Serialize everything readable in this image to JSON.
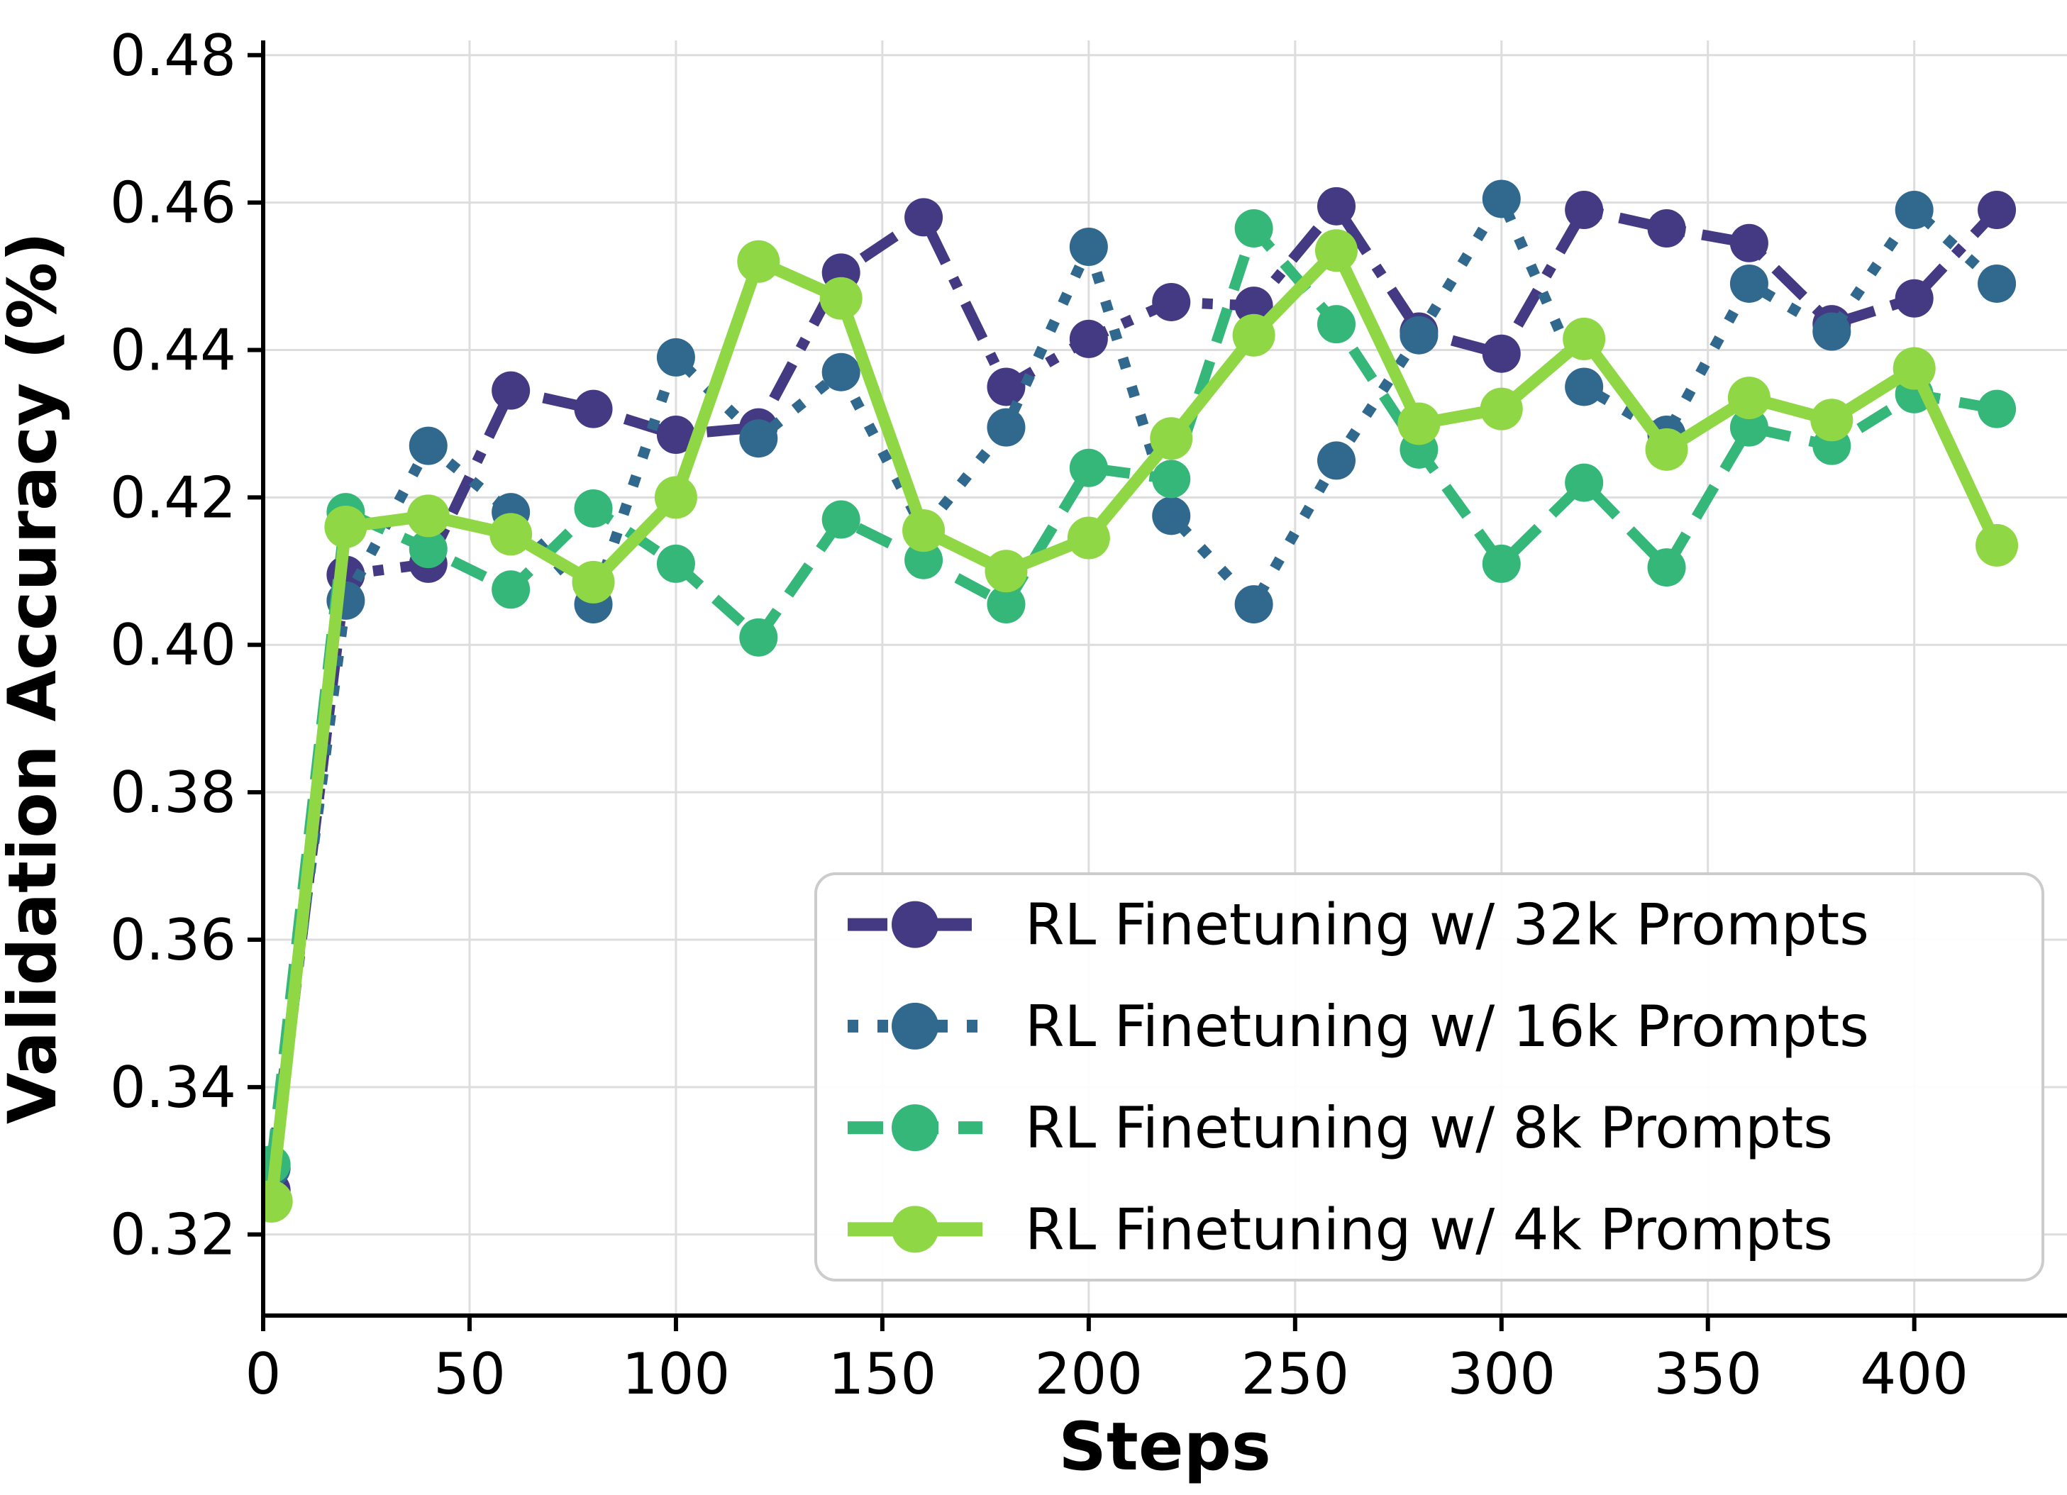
{
  "chart_data": {
    "type": "line",
    "title": "",
    "xlabel": "Steps",
    "ylabel": "Validation Accuracy (%)",
    "xlim": [
      0,
      437
    ],
    "ylim": [
      0.309,
      0.482
    ],
    "grid": true,
    "grid_color": "#dddddd",
    "background": "#ffffff",
    "legend_position": "lower right",
    "xtick_values": [
      0,
      50,
      100,
      150,
      200,
      250,
      300,
      350,
      400
    ],
    "xtick_labels": [
      "0",
      "50",
      "100",
      "150",
      "200",
      "250",
      "300",
      "350",
      "400"
    ],
    "ytick_values": [
      0.32,
      0.34,
      0.36,
      0.38,
      0.4,
      0.42,
      0.44,
      0.46,
      0.48
    ],
    "ytick_labels": [
      "0.32",
      "0.34",
      "0.36",
      "0.38",
      "0.40",
      "0.42",
      "0.44",
      "0.46",
      "0.48"
    ],
    "x": [
      2,
      20,
      40,
      60,
      80,
      100,
      120,
      140,
      160,
      180,
      200,
      220,
      240,
      260,
      280,
      300,
      320,
      340,
      360,
      380,
      400,
      420
    ],
    "series": [
      {
        "name": "RL Finetuning w/ 32k Prompts",
        "color": "#443983",
        "line_style": "dashdot",
        "values": [
          0.326,
          0.4095,
          0.411,
          0.4345,
          0.432,
          0.4285,
          0.4295,
          0.4505,
          0.458,
          0.435,
          0.4415,
          0.4465,
          0.446,
          0.4595,
          0.4425,
          0.4395,
          0.459,
          0.4565,
          0.4545,
          0.4435,
          0.447,
          0.459
        ]
      },
      {
        "name": "RL Finetuning w/ 16k Prompts",
        "color": "#31688e",
        "line_style": "dotted",
        "values": [
          0.329,
          0.406,
          0.427,
          0.418,
          0.4055,
          0.439,
          0.428,
          0.437,
          0.4155,
          0.4295,
          0.454,
          0.4175,
          0.4055,
          0.425,
          0.442,
          0.4605,
          0.435,
          0.4285,
          0.449,
          0.4425,
          0.459,
          0.449
        ]
      },
      {
        "name": "RL Finetuning w/ 8k Prompts",
        "color": "#35b779",
        "line_style": "dashed",
        "values": [
          0.3295,
          0.418,
          0.413,
          0.4075,
          0.4185,
          0.411,
          0.401,
          0.417,
          0.4115,
          0.4055,
          0.424,
          0.4225,
          0.4565,
          0.4435,
          0.4265,
          0.411,
          0.422,
          0.4105,
          0.4295,
          0.427,
          0.434,
          0.432
        ]
      },
      {
        "name": "RL Finetuning w/ 4k Prompts",
        "color": "#8fd744",
        "line_style": "solid",
        "values": [
          0.3245,
          0.416,
          0.4175,
          0.415,
          0.4085,
          0.42,
          0.452,
          0.447,
          0.4155,
          0.41,
          0.4145,
          0.428,
          0.442,
          0.4535,
          0.43,
          0.432,
          0.4415,
          0.4265,
          0.4335,
          0.4305,
          0.4375,
          0.4135
        ]
      }
    ]
  }
}
